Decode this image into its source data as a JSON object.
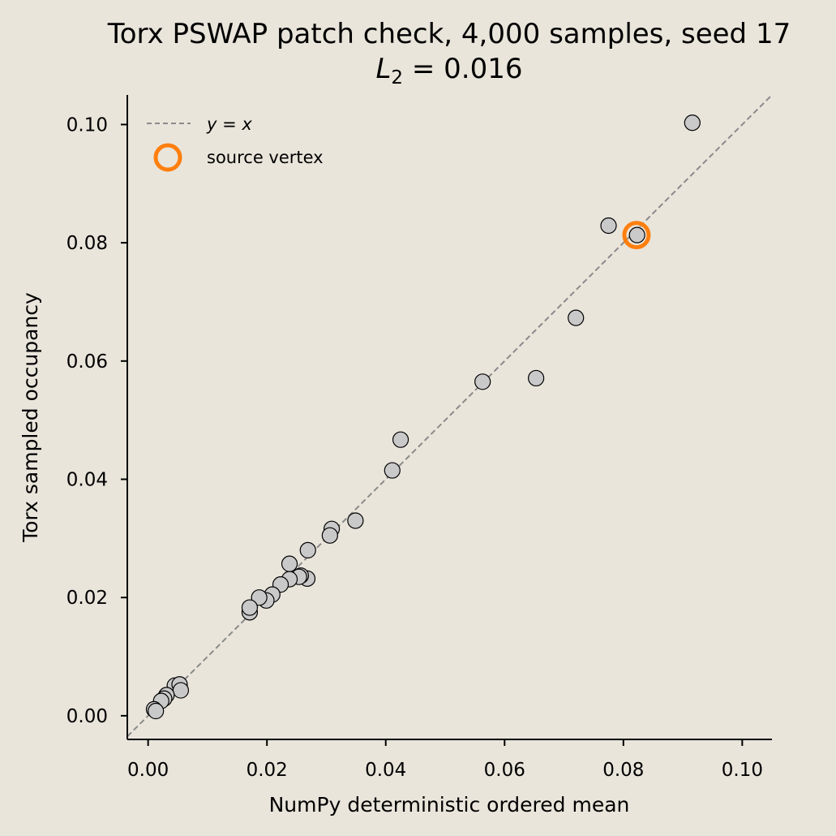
{
  "chart_data": {
    "type": "scatter",
    "title": "Torx PSWAP patch check, 4,000 samples, seed 17",
    "subtitle": {
      "var": "L",
      "sub": "2",
      "rest": " = 0.016"
    },
    "xlabel": "NumPy deterministic ordered mean",
    "ylabel": "Torx sampled occupancy",
    "xlim": [
      -0.0035,
      0.105
    ],
    "ylim": [
      -0.004,
      0.105
    ],
    "xticks": [
      "0.00",
      "0.02",
      "0.04",
      "0.06",
      "0.08",
      "0.10"
    ],
    "yticks": [
      "0.00",
      "0.02",
      "0.04",
      "0.06",
      "0.08",
      "0.10"
    ],
    "grid": false,
    "legend_position": "top-left",
    "legend": {
      "reference_line": {
        "var_a": "y",
        "op": " = ",
        "var_b": "x"
      },
      "highlight": "source vertex"
    },
    "colors": {
      "background": "#e9e5db",
      "point_fill": "#c9c9c9",
      "point_edge": "#000000",
      "reference_line": "#8a8a8a",
      "highlight": "#ff7f0e"
    },
    "series": [
      {
        "points": [
          [
            0.0916,
            0.1003
          ],
          [
            0.0775,
            0.0829
          ],
          [
            0.0823,
            0.0813
          ],
          [
            0.072,
            0.0673
          ],
          [
            0.0563,
            0.0565
          ],
          [
            0.0653,
            0.0571
          ],
          [
            0.0425,
            0.0467
          ],
          [
            0.0411,
            0.0415
          ],
          [
            0.0349,
            0.033
          ],
          [
            0.0309,
            0.0316
          ],
          [
            0.0306,
            0.0305
          ],
          [
            0.0269,
            0.028
          ],
          [
            0.0238,
            0.0257
          ],
          [
            0.0268,
            0.0232
          ],
          [
            0.0257,
            0.0237
          ],
          [
            0.0254,
            0.0235
          ],
          [
            0.0238,
            0.0231
          ],
          [
            0.0223,
            0.0222
          ],
          [
            0.0209,
            0.0205
          ],
          [
            0.0199,
            0.0195
          ],
          [
            0.0187,
            0.02
          ],
          [
            0.0171,
            0.0175
          ],
          [
            0.0171,
            0.0183
          ],
          [
            0.0045,
            0.0051
          ],
          [
            0.0053,
            0.0053
          ],
          [
            0.0055,
            0.0043
          ],
          [
            0.0031,
            0.0035
          ],
          [
            0.0027,
            0.0029
          ],
          [
            0.0022,
            0.0025
          ],
          [
            0.001,
            0.0011
          ],
          [
            0.0013,
            0.0008
          ]
        ]
      }
    ],
    "highlight_point": [
      0.0822,
      0.0813
    ]
  }
}
